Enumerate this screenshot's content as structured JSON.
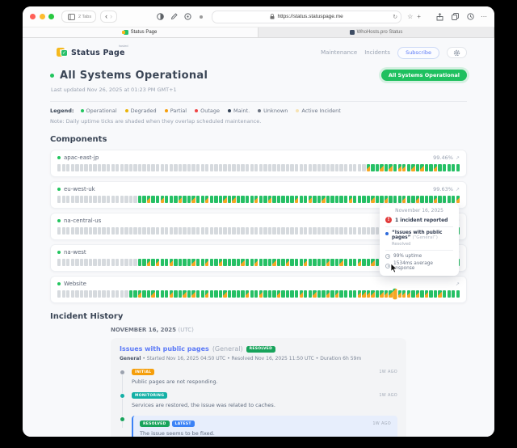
{
  "browser": {
    "tabs_label": "2 Tabs",
    "url": "https://status.statuspage.me",
    "tabs": [
      {
        "title": "Status Page"
      },
      {
        "title": "WhoHosts.pro Status"
      }
    ]
  },
  "header": {
    "logo_text": "Status Page",
    "logo_tag": "hosted",
    "nav_maintenance": "Maintenance",
    "nav_incidents": "Incidents",
    "subscribe_label": "Subscribe"
  },
  "hero": {
    "title": "All Systems Operational",
    "last_updated": "Last updated Nov 26, 2025 at 01:23 PM GMT+1",
    "status_pill": "All Systems Operational"
  },
  "legend": {
    "label": "Legend:",
    "note": "Note: Daily uptime ticks are shaded when they overlap scheduled maintenance.",
    "items": [
      {
        "label": "Operational",
        "color": "#22c55e"
      },
      {
        "label": "Degraded",
        "color": "#eab308"
      },
      {
        "label": "Partial",
        "color": "#f59e0b"
      },
      {
        "label": "Outage",
        "color": "#ef4444"
      },
      {
        "label": "Maint.",
        "color": "#334155"
      },
      {
        "label": "Unknown",
        "color": "#6b7280"
      },
      {
        "label": "Active Incident",
        "color": "#f6e3b4"
      }
    ]
  },
  "components": {
    "title": "Components",
    "rows": [
      {
        "name": "apac-east-jp",
        "pct": "99.46%",
        "gray": 69,
        "pattern": "sggsgsgssgsgsggsggggg"
      },
      {
        "name": "eu-west-uk",
        "pct": "99.63%",
        "gray": 18,
        "pattern": "ggsggsgggsggsggsgggsgsggggsggsgggggsggsggsgggggsggggsggsgggsggsgggsggggs"
      },
      {
        "name": "na-central-us",
        "pct": "",
        "gray": 88,
        "pattern": "gg"
      },
      {
        "name": "na-west",
        "pct": "",
        "gray": 18,
        "pattern": "ggsgsggsggggsggsggsggggsggsgggsggsgggsggggsggsgggsggsgggggsgggsggggsggsg"
      },
      {
        "name": "Website",
        "pct": "",
        "gray": 16,
        "pattern": "ggsggsgggsggsgsggsgggsggggsggsgggsggggsggsggsgsggggssssgssshsssgsgsggsgggg"
      }
    ]
  },
  "tooltip": {
    "date": "November 16, 2025",
    "alert_glyph": "!",
    "incident_count": "1 incident reported",
    "incident_title": "“Issues with public pages”",
    "incident_component": "(“General”)",
    "incident_status": "Resolved",
    "uptime": "99% uptime",
    "response": "1534ms average response"
  },
  "incident_history": {
    "title": "Incident History",
    "date": "NOVEMBER 16, 2025",
    "date_suffix": "(UTC)",
    "incident": {
      "title": "Issues with public pages",
      "component": "(General)",
      "status_badge": "RESOLVED",
      "meta_bold": "General",
      "meta": " • Started Nov 16, 2025 04:50 UTC • Resolved Nov 16, 2025 11:50 UTC • Duration 6h 59m",
      "updates": [
        {
          "badge": "INITIAL",
          "badge_class": "b-initial",
          "dot": "#9ca3af",
          "time": "1W AGO",
          "text": "Public pages are not responding.",
          "latest": false
        },
        {
          "badge": "MONITORING",
          "badge_class": "b-monitoring",
          "dot": "#14b0a6",
          "time": "1W AGO",
          "text": "Services are restored, the issue was related to caches.",
          "latest": false
        },
        {
          "badge": "RESOLVED",
          "badge_class": "b-resolved",
          "badge2": "LATEST",
          "badge2_class": "b-latest",
          "dot": "#17a35b",
          "time": "1W AGO",
          "text": "The issue seems to be fixed.",
          "latest": true
        }
      ]
    }
  }
}
